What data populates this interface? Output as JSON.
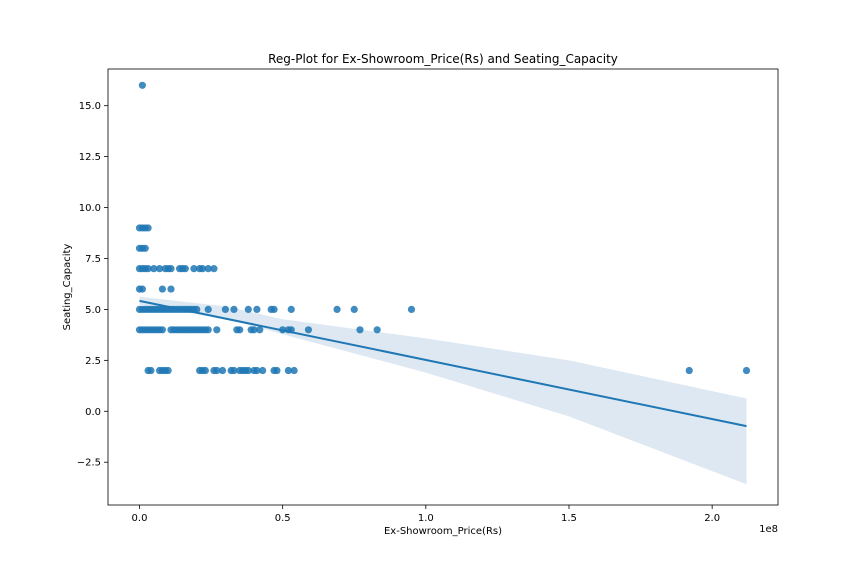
{
  "chart_data": {
    "type": "scatter",
    "title": "Reg-Plot for Ex-Showroom_Price(Rs) and Seating_Capacity",
    "xlabel": "Ex-Showroom_Price(Rs)",
    "ylabel": "Seating_Capacity",
    "x_offset_label": "1e8",
    "xlim": [
      -0.11,
      2.23
    ],
    "ylim": [
      -4.6,
      16.8
    ],
    "x_ticks": [
      0.0,
      0.5,
      1.0,
      1.5,
      2.0
    ],
    "x_tick_labels": [
      "0.0",
      "0.5",
      "1.0",
      "1.5",
      "2.0"
    ],
    "y_ticks": [
      -2.5,
      0.0,
      2.5,
      5.0,
      7.5,
      10.0,
      12.5,
      15.0
    ],
    "y_tick_labels": [
      "−2.5",
      "0.0",
      "2.5",
      "5.0",
      "7.5",
      "10.0",
      "12.5",
      "15.0"
    ],
    "grid": false,
    "colors": {
      "points": "#1f77b4",
      "line": "#1f77b4",
      "band": "#dde8f3"
    },
    "points": [
      [
        0.01,
        16
      ],
      [
        0.0,
        9
      ],
      [
        0.01,
        9
      ],
      [
        0.02,
        9
      ],
      [
        0.03,
        9
      ],
      [
        0.0,
        8
      ],
      [
        0.01,
        8
      ],
      [
        0.02,
        8
      ],
      [
        0.0,
        7
      ],
      [
        0.01,
        7
      ],
      [
        0.02,
        7
      ],
      [
        0.03,
        7
      ],
      [
        0.05,
        7
      ],
      [
        0.07,
        7
      ],
      [
        0.09,
        7
      ],
      [
        0.1,
        7
      ],
      [
        0.11,
        7
      ],
      [
        0.14,
        7
      ],
      [
        0.15,
        7
      ],
      [
        0.16,
        7
      ],
      [
        0.19,
        7
      ],
      [
        0.21,
        7
      ],
      [
        0.22,
        7
      ],
      [
        0.24,
        7
      ],
      [
        0.26,
        7
      ],
      [
        0.0,
        6
      ],
      [
        0.01,
        6
      ],
      [
        0.08,
        6
      ],
      [
        0.11,
        6
      ],
      [
        0.0,
        5
      ],
      [
        0.01,
        5
      ],
      [
        0.02,
        5
      ],
      [
        0.03,
        5
      ],
      [
        0.04,
        5
      ],
      [
        0.05,
        5
      ],
      [
        0.06,
        5
      ],
      [
        0.07,
        5
      ],
      [
        0.08,
        5
      ],
      [
        0.09,
        5
      ],
      [
        0.1,
        5
      ],
      [
        0.11,
        5
      ],
      [
        0.12,
        5
      ],
      [
        0.13,
        5
      ],
      [
        0.14,
        5
      ],
      [
        0.15,
        5
      ],
      [
        0.16,
        5
      ],
      [
        0.17,
        5
      ],
      [
        0.18,
        5
      ],
      [
        0.19,
        5
      ],
      [
        0.2,
        5
      ],
      [
        0.24,
        5
      ],
      [
        0.3,
        5
      ],
      [
        0.33,
        5
      ],
      [
        0.38,
        5
      ],
      [
        0.41,
        5
      ],
      [
        0.46,
        5
      ],
      [
        0.47,
        5
      ],
      [
        0.53,
        5
      ],
      [
        0.69,
        5
      ],
      [
        0.75,
        5
      ],
      [
        0.95,
        5
      ],
      [
        0.0,
        4
      ],
      [
        0.01,
        4
      ],
      [
        0.02,
        4
      ],
      [
        0.03,
        4
      ],
      [
        0.04,
        4
      ],
      [
        0.05,
        4
      ],
      [
        0.06,
        4
      ],
      [
        0.07,
        4
      ],
      [
        0.08,
        4
      ],
      [
        0.11,
        4
      ],
      [
        0.12,
        4
      ],
      [
        0.13,
        4
      ],
      [
        0.14,
        4
      ],
      [
        0.15,
        4
      ],
      [
        0.16,
        4
      ],
      [
        0.17,
        4
      ],
      [
        0.18,
        4
      ],
      [
        0.19,
        4
      ],
      [
        0.2,
        4
      ],
      [
        0.21,
        4
      ],
      [
        0.22,
        4
      ],
      [
        0.23,
        4
      ],
      [
        0.24,
        4
      ],
      [
        0.27,
        4
      ],
      [
        0.34,
        4
      ],
      [
        0.35,
        4
      ],
      [
        0.39,
        4
      ],
      [
        0.4,
        4
      ],
      [
        0.42,
        4
      ],
      [
        0.5,
        4
      ],
      [
        0.52,
        4
      ],
      [
        0.53,
        4
      ],
      [
        0.59,
        4
      ],
      [
        0.77,
        4
      ],
      [
        0.83,
        4
      ],
      [
        0.03,
        2
      ],
      [
        0.04,
        2
      ],
      [
        0.07,
        2
      ],
      [
        0.08,
        2
      ],
      [
        0.09,
        2
      ],
      [
        0.1,
        2
      ],
      [
        0.21,
        2
      ],
      [
        0.22,
        2
      ],
      [
        0.23,
        2
      ],
      [
        0.26,
        2
      ],
      [
        0.27,
        2
      ],
      [
        0.29,
        2
      ],
      [
        0.32,
        2
      ],
      [
        0.33,
        2
      ],
      [
        0.35,
        2
      ],
      [
        0.36,
        2
      ],
      [
        0.37,
        2
      ],
      [
        0.38,
        2
      ],
      [
        0.4,
        2
      ],
      [
        0.41,
        2
      ],
      [
        0.43,
        2
      ],
      [
        0.47,
        2
      ],
      [
        0.48,
        2
      ],
      [
        0.52,
        2
      ],
      [
        0.54,
        2
      ],
      [
        1.92,
        2
      ],
      [
        2.12,
        2
      ]
    ],
    "regression": {
      "x": [
        0.0,
        2.12
      ],
      "y": [
        5.42,
        -0.73
      ]
    },
    "ci_upper": [
      [
        0.0,
        5.62
      ],
      [
        0.3,
        5.15
      ],
      [
        0.5,
        4.52
      ],
      [
        1.0,
        3.58
      ],
      [
        1.5,
        2.5
      ],
      [
        2.12,
        0.63
      ]
    ],
    "ci_lower": [
      [
        0.0,
        5.22
      ],
      [
        0.3,
        4.55
      ],
      [
        0.5,
        3.78
      ],
      [
        1.0,
        1.9
      ],
      [
        1.5,
        -0.25
      ],
      [
        2.12,
        -3.58
      ]
    ]
  }
}
